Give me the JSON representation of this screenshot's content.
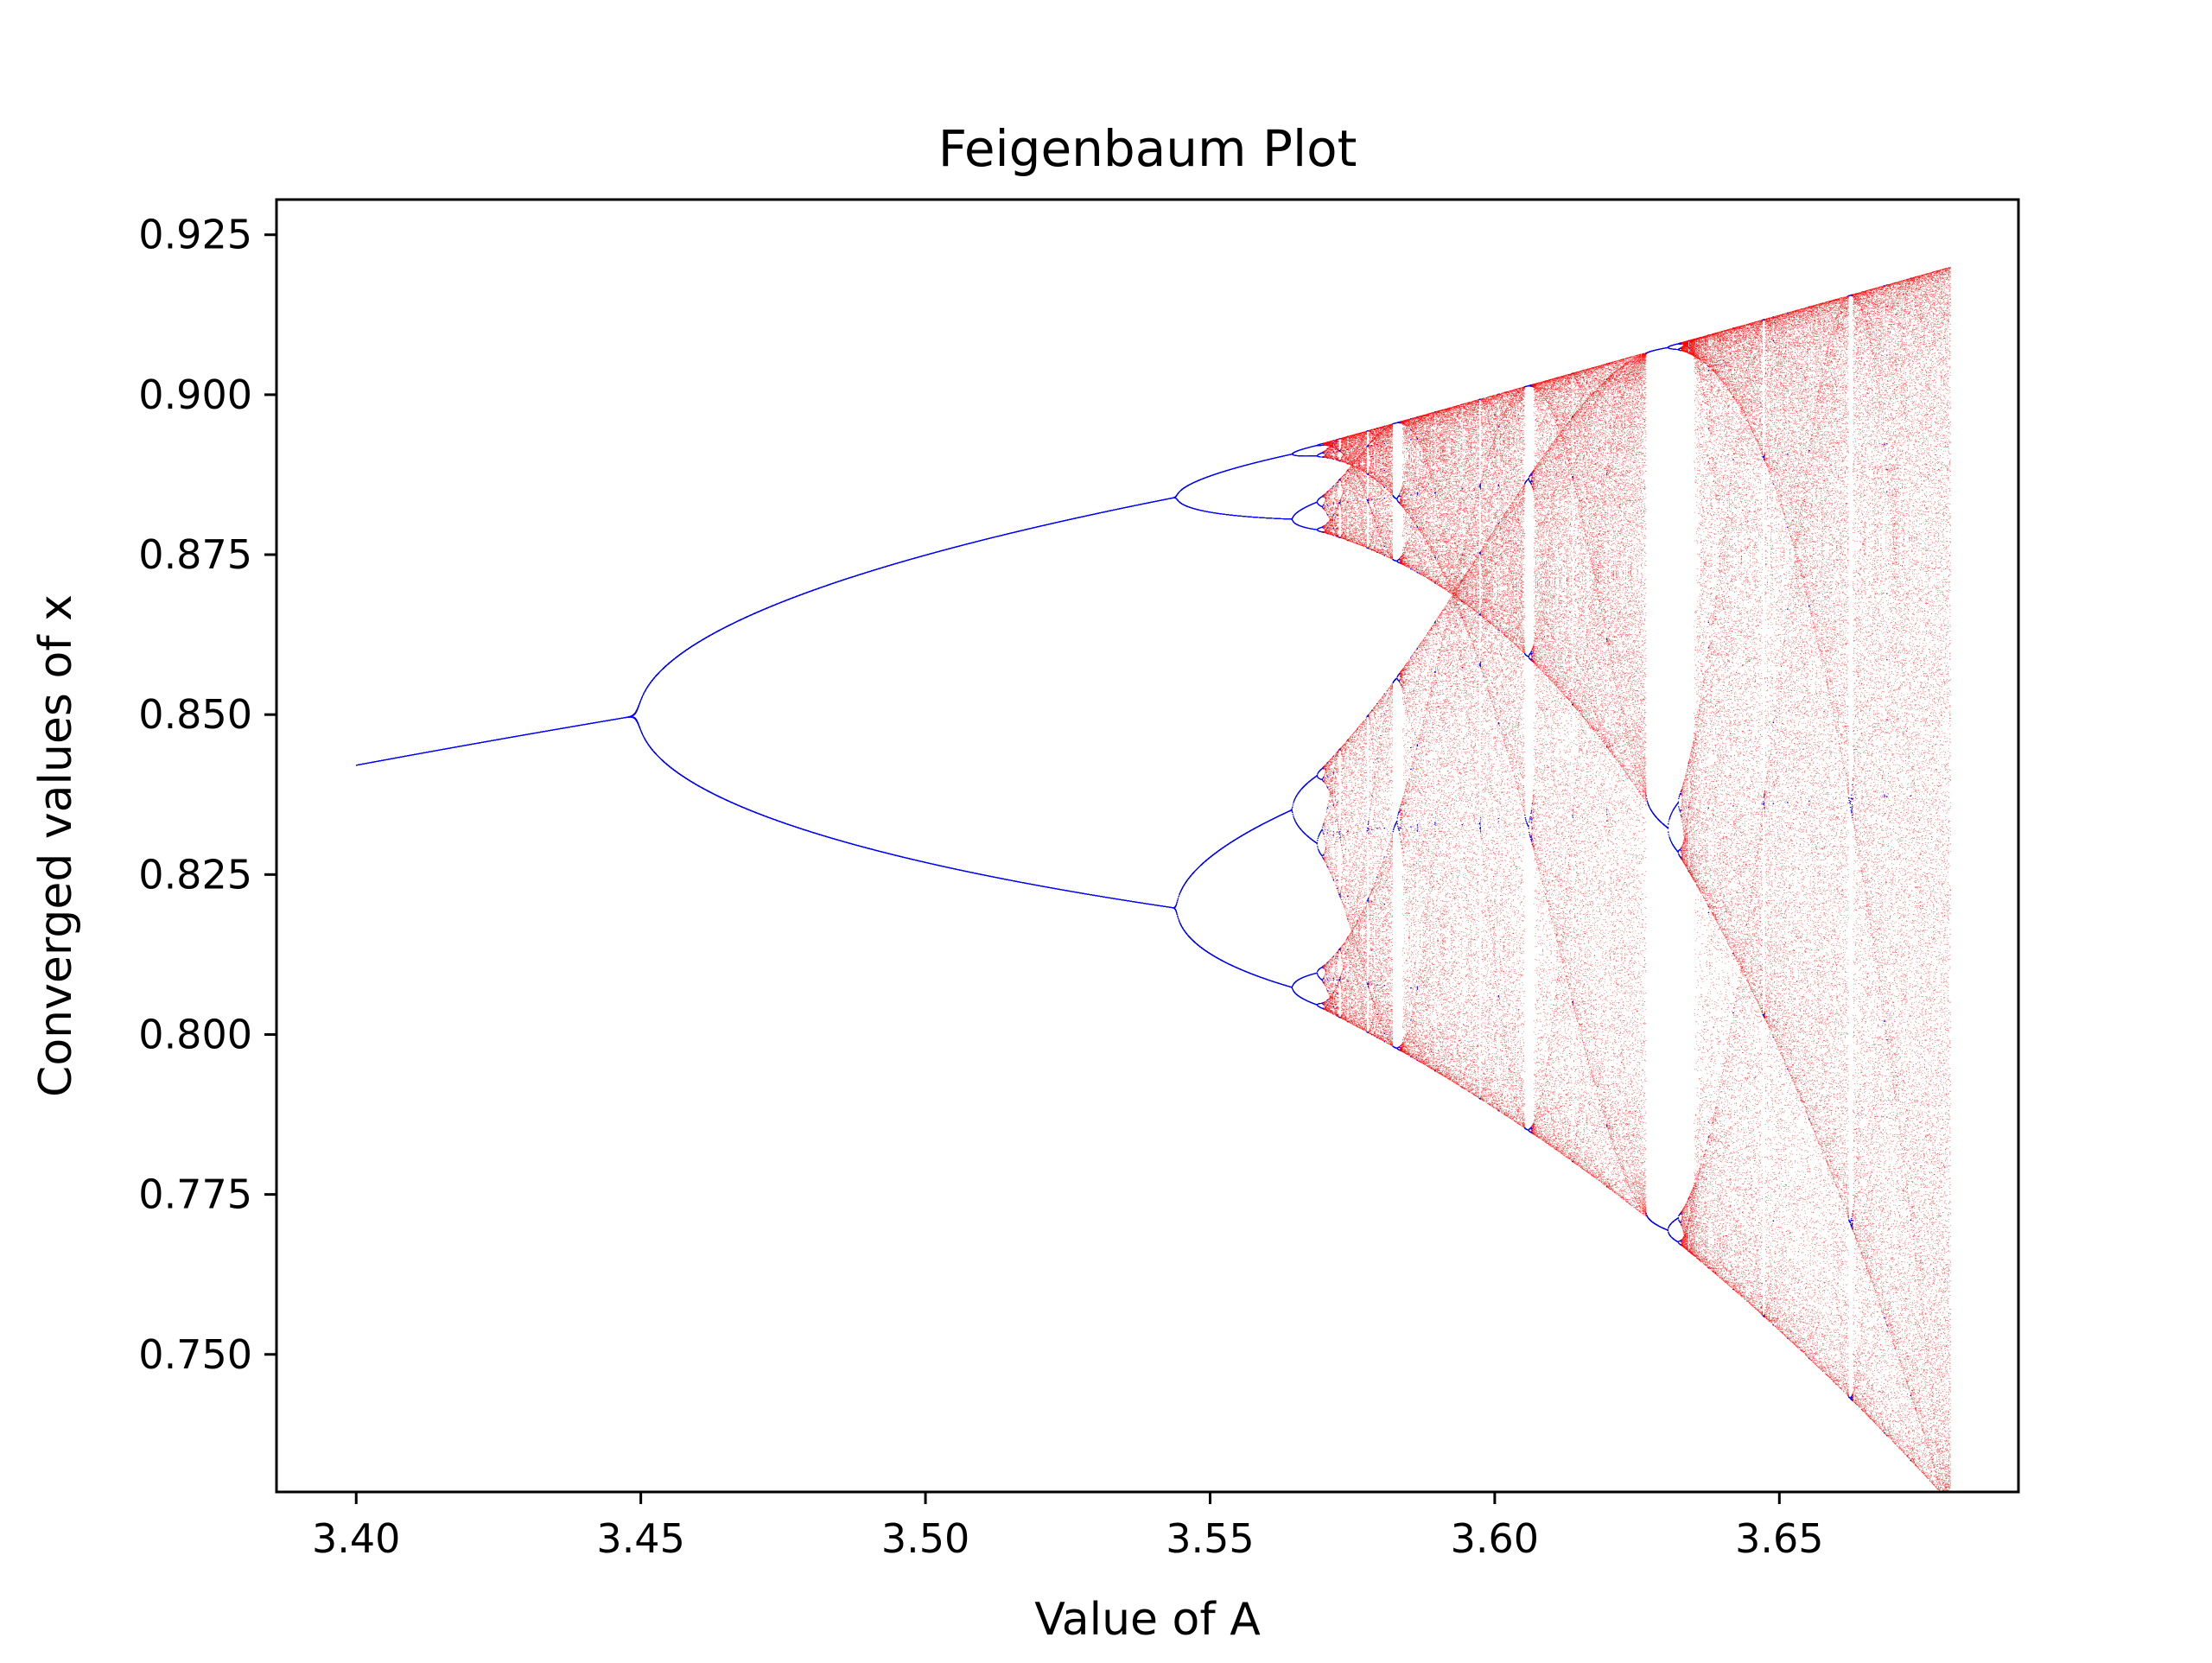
{
  "chart_data": {
    "type": "scatter",
    "title": "Feigenbaum Plot",
    "xlabel": "Value of A",
    "ylabel": "Converged values of x",
    "xlim": [
      3.386,
      3.692
    ],
    "ylim": [
      0.7285,
      0.9305
    ],
    "xticks": [
      3.4,
      3.45,
      3.5,
      3.55,
      3.6,
      3.65
    ],
    "xtick_labels": [
      "3.40",
      "3.45",
      "3.50",
      "3.55",
      "3.60",
      "3.65"
    ],
    "yticks": [
      0.75,
      0.775,
      0.8,
      0.825,
      0.85,
      0.875,
      0.9,
      0.925
    ],
    "ytick_labels": [
      "0.750",
      "0.775",
      "0.800",
      "0.825",
      "0.850",
      "0.875",
      "0.900",
      "0.925"
    ],
    "grid": false,
    "legend": "none",
    "a_range": [
      3.4,
      3.68
    ],
    "series": [
      {
        "color": "#0000ff",
        "values": "stable periodic orbits of x(n+1) = A·x(n)·(1 − x(n)), plotted for A from 3.40 to 3.68"
      },
      {
        "color": "#ff0000",
        "values": "chaotic iterates of x(n+1) = A·x(n)·(1 − x(n)), plotted for A from 3.40 to 3.68"
      }
    ],
    "key_points": [
      {
        "a": 3.4,
        "x": 0.842
      },
      {
        "a": 3.449,
        "x": 0.85
      },
      {
        "a": 3.544,
        "x": [
          0.82,
          0.884
        ]
      },
      {
        "a": 3.564,
        "x": [
          0.808,
          0.835,
          0.881,
          0.891
        ]
      },
      {
        "a": 3.5699,
        "x": [
          0.804,
          0.893
        ]
      },
      {
        "a": 3.628,
        "x": [
          0.772,
          0.907
        ]
      },
      {
        "a": 3.68,
        "x": [
          0.729,
          0.92
        ]
      }
    ]
  }
}
